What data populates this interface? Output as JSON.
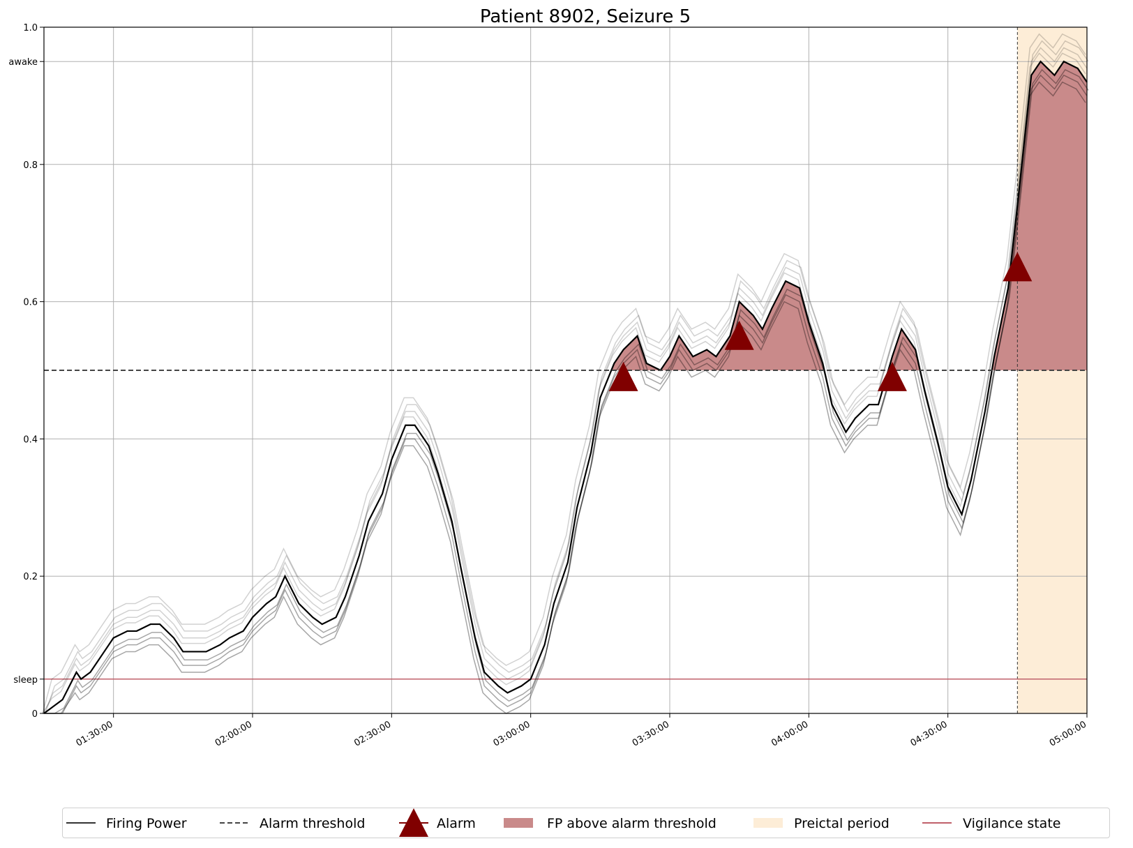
{
  "chart_data": {
    "type": "line",
    "title": "Patient 8902, Seizure 5",
    "xlabel": "",
    "ylabel": "",
    "xlim": [
      "01:15:00",
      "05:00:00"
    ],
    "ylim": [
      0,
      1.0
    ],
    "x_tick_labels": [
      "01:30:00",
      "02:00:00",
      "02:30:00",
      "03:00:00",
      "03:30:00",
      "04:00:00",
      "04:30:00",
      "05:00:00"
    ],
    "x_ticks_minutes": [
      90,
      120,
      150,
      180,
      210,
      240,
      270,
      300
    ],
    "y_ticks": [
      {
        "value": 0,
        "label": "0"
      },
      {
        "value": 0.05,
        "label": "sleep"
      },
      {
        "value": 0.2,
        "label": "0.2"
      },
      {
        "value": 0.4,
        "label": "0.4"
      },
      {
        "value": 0.6,
        "label": "0.6"
      },
      {
        "value": 0.8,
        "label": "0.8"
      },
      {
        "value": 0.95,
        "label": "awake"
      },
      {
        "value": 1.0,
        "label": "1.0"
      }
    ],
    "grid": true,
    "alarm_threshold": 0.5,
    "preictal_period": [
      "04:45:00",
      "05:00:00"
    ],
    "vigilance_state": [
      {
        "from": "01:15:00",
        "to": "05:00:00",
        "state": "sleep",
        "value": 0.05
      }
    ],
    "firing_power": {
      "x": [
        "01:15:00",
        "01:17:00",
        "01:19:00",
        "01:22:00",
        "01:23:00",
        "01:25:00",
        "01:28:00",
        "01:30:00",
        "01:33:00",
        "01:35:00",
        "01:38:00",
        "01:40:00",
        "01:43:00",
        "01:45:00",
        "01:48:00",
        "01:50:00",
        "01:53:00",
        "01:55:00",
        "01:58:00",
        "02:00:00",
        "02:03:00",
        "02:05:00",
        "02:07:00",
        "02:10:00",
        "02:13:00",
        "02:15:00",
        "02:18:00",
        "02:20:00",
        "02:23:00",
        "02:25:00",
        "02:28:00",
        "02:30:00",
        "02:33:00",
        "02:35:00",
        "02:38:00",
        "02:40:00",
        "02:43:00",
        "02:45:00",
        "02:48:00",
        "02:50:00",
        "02:53:00",
        "02:55:00",
        "02:58:00",
        "03:00:00",
        "03:03:00",
        "03:05:00",
        "03:08:00",
        "03:10:00",
        "03:13:00",
        "03:15:00",
        "03:18:00",
        "03:20:00",
        "03:23:00",
        "03:25:00",
        "03:28:00",
        "03:30:00",
        "03:32:00",
        "03:35:00",
        "03:38:00",
        "03:40:00",
        "03:43:00",
        "03:45:00",
        "03:48:00",
        "03:50:00",
        "03:52:00",
        "03:55:00",
        "03:58:00",
        "04:00:00",
        "04:03:00",
        "04:05:00",
        "04:08:00",
        "04:10:00",
        "04:13:00",
        "04:15:00",
        "04:18:00",
        "04:20:00",
        "04:23:00",
        "04:25:00",
        "04:28:00",
        "04:30:00",
        "04:33:00",
        "04:35:00",
        "04:38:00",
        "04:40:00",
        "04:43:00",
        "04:45:00",
        "04:48:00",
        "04:50:00",
        "04:53:00",
        "04:55:00",
        "04:58:00",
        "05:00:00"
      ],
      "y": [
        0.0,
        0.01,
        0.02,
        0.06,
        0.05,
        0.06,
        0.09,
        0.11,
        0.12,
        0.12,
        0.13,
        0.13,
        0.11,
        0.09,
        0.09,
        0.09,
        0.1,
        0.11,
        0.12,
        0.14,
        0.16,
        0.17,
        0.2,
        0.16,
        0.14,
        0.13,
        0.14,
        0.17,
        0.23,
        0.28,
        0.32,
        0.37,
        0.42,
        0.42,
        0.39,
        0.35,
        0.28,
        0.21,
        0.11,
        0.06,
        0.04,
        0.03,
        0.04,
        0.05,
        0.1,
        0.16,
        0.22,
        0.3,
        0.38,
        0.46,
        0.51,
        0.53,
        0.55,
        0.51,
        0.5,
        0.52,
        0.55,
        0.52,
        0.53,
        0.52,
        0.55,
        0.6,
        0.58,
        0.56,
        0.59,
        0.63,
        0.62,
        0.57,
        0.51,
        0.45,
        0.41,
        0.43,
        0.45,
        0.45,
        0.52,
        0.56,
        0.53,
        0.47,
        0.39,
        0.33,
        0.29,
        0.34,
        0.44,
        0.52,
        0.62,
        0.74,
        0.93,
        0.95,
        0.93,
        0.95,
        0.94,
        0.92
      ]
    },
    "alarms": [
      {
        "time": "03:20:00",
        "value": 0.49
      },
      {
        "time": "03:45:00",
        "value": 0.55
      },
      {
        "time": "04:18:00",
        "value": 0.49
      },
      {
        "time": "04:45:00",
        "value": 0.65
      }
    ],
    "legend": {
      "placement": "bottom-center",
      "entries": [
        {
          "label": "Firing Power",
          "kind": "line"
        },
        {
          "label": "Alarm threshold",
          "kind": "dashed"
        },
        {
          "label": "Alarm",
          "kind": "triangle"
        },
        {
          "label": "FP above alarm threshold",
          "kind": "fill"
        },
        {
          "label": "Preictal period",
          "kind": "span"
        },
        {
          "label": "Vigilance state",
          "kind": "redline"
        }
      ]
    },
    "colors": {
      "firing_power": "#000000",
      "threshold": "#444444",
      "alarm": "#800000",
      "fill_above": "#c98a8a",
      "preictal": "#fdedd7",
      "vigilance": "#c0606a",
      "grid": "#b0b0b0"
    }
  }
}
